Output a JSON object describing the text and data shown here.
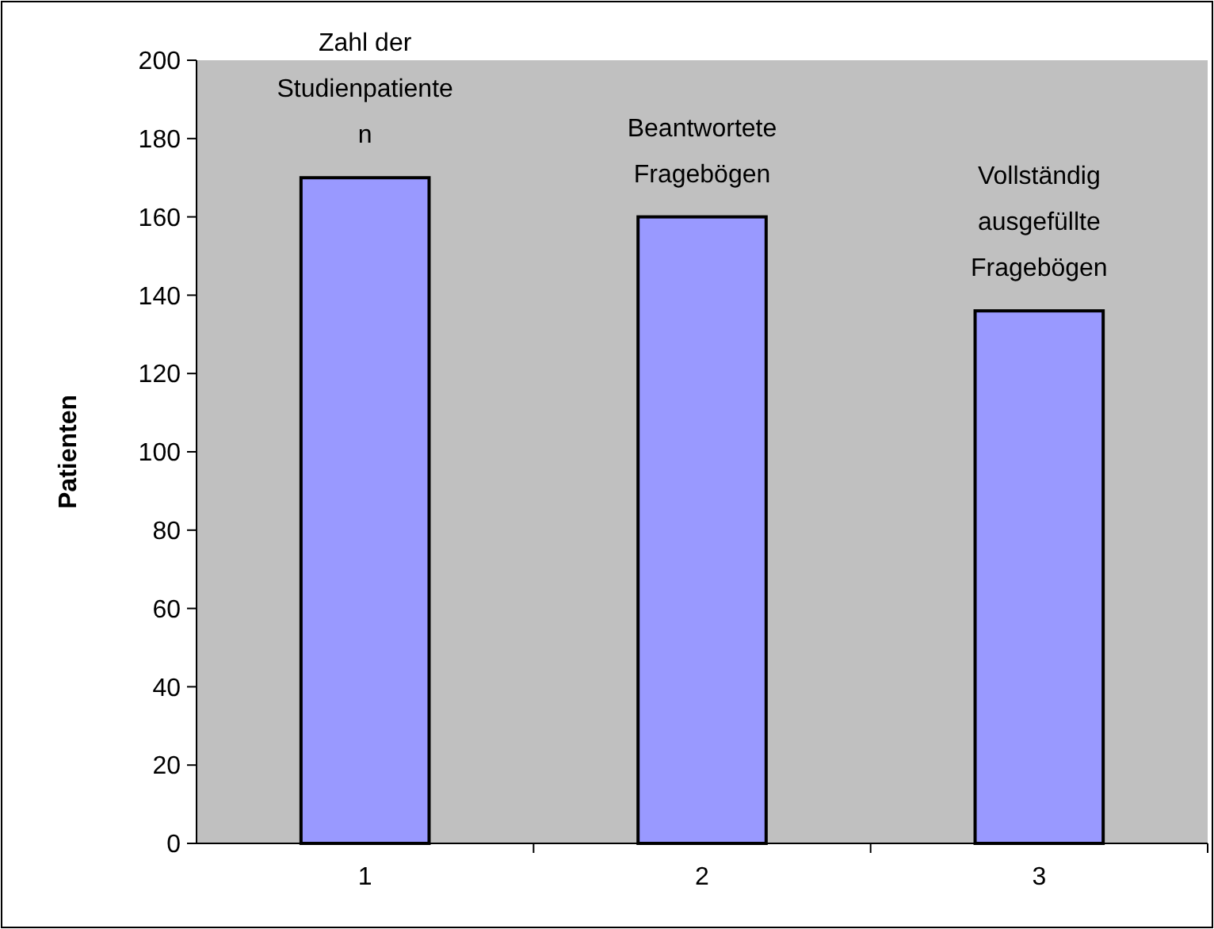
{
  "chart_data": {
    "type": "bar",
    "ylabel": "Patienten",
    "categories": [
      "1",
      "2",
      "3"
    ],
    "values": [
      170,
      160,
      136
    ],
    "color": "#9999ff",
    "ylim": [
      0,
      200
    ],
    "yticks": [
      0,
      20,
      40,
      60,
      80,
      100,
      120,
      140,
      160,
      180,
      200
    ],
    "grid": false,
    "annotations": [
      {
        "text": "Zahl der\nStudienpatiente\nn",
        "x": "1",
        "y": 170
      },
      {
        "text": "Beantwortete\nFragebögen",
        "x": "2",
        "y": 160
      },
      {
        "text": "Vollständig\nausgefüllte\nFragebögen",
        "x": "3",
        "y": 136
      }
    ]
  }
}
